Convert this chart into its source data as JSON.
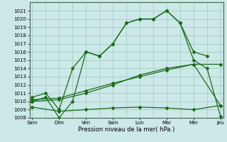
{
  "xlabel": "Pression niveau de la mer( hPa )",
  "ylim": [
    1008,
    1022
  ],
  "yticks": [
    1008,
    1009,
    1010,
    1011,
    1012,
    1013,
    1014,
    1015,
    1016,
    1017,
    1018,
    1019,
    1020,
    1021
  ],
  "xtick_positions": [
    0,
    1,
    2,
    3,
    4,
    5,
    6,
    7
  ],
  "xtick_labels": [
    "Sam",
    "Dim",
    "Ven",
    "Sam",
    "Lun",
    "Mar",
    "Mer",
    "Jeu"
  ],
  "background_color": "#cce8e8",
  "grid_color": "#99ccbb",
  "line_color": "#1a6b1a",
  "xlim": [
    -0.1,
    7.1
  ],
  "series1_x": [
    0,
    0.5,
    1,
    1.5,
    2,
    2.5,
    3,
    3.5,
    4,
    4.5,
    5,
    5.5,
    6,
    6.5
  ],
  "series1_y": [
    1010.5,
    1011.0,
    1009.0,
    1014.0,
    1016.0,
    1015.5,
    1017.0,
    1019.5,
    1020.0,
    1020.0,
    1021.0,
    1019.5,
    1016.0,
    1015.5
  ],
  "series2_x": [
    0,
    0.5,
    1,
    1.5,
    2,
    2.5,
    3,
    3.5,
    4,
    4.5,
    5,
    5.5,
    6,
    6.5,
    7
  ],
  "series2_y": [
    1010.0,
    1010.5,
    1008.0,
    1010.0,
    1016.0,
    1015.5,
    1017.0,
    1019.5,
    1020.0,
    1020.0,
    1021.0,
    1019.5,
    1015.0,
    1014.0,
    1008.2
  ],
  "series3_x": [
    0,
    1,
    2,
    3,
    4,
    5,
    6,
    7
  ],
  "series3_y": [
    1010.2,
    1010.4,
    1011.3,
    1012.2,
    1013.0,
    1013.8,
    1014.5,
    1014.5
  ],
  "series4_x": [
    0,
    1,
    2,
    3,
    4,
    5,
    6,
    7
  ],
  "series4_y": [
    1010.0,
    1010.2,
    1011.0,
    1012.0,
    1013.2,
    1014.0,
    1014.5,
    1009.5
  ],
  "series5_x": [
    0,
    1,
    2,
    3,
    4,
    5,
    6,
    7
  ],
  "series5_y": [
    1009.3,
    1008.8,
    1009.0,
    1009.2,
    1009.3,
    1009.2,
    1009.0,
    1009.5
  ]
}
